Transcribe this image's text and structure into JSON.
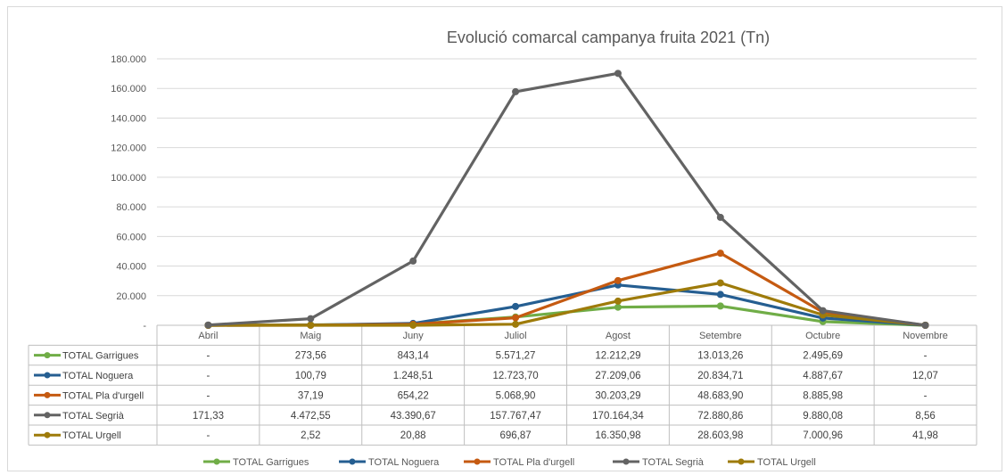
{
  "chart_data": {
    "type": "line",
    "title": "Evolució comarcal campanya fruita 2021 (Tn)",
    "categories": [
      "Abril",
      "Maig",
      "Juny",
      "Juliol",
      "Agost",
      "Setembre",
      "Octubre",
      "Novembre"
    ],
    "ylim": [
      0,
      180000
    ],
    "yticks": [
      0,
      20000,
      40000,
      60000,
      80000,
      100000,
      120000,
      140000,
      160000,
      180000
    ],
    "ytick_labels": [
      "-",
      "20.000",
      "40.000",
      "60.000",
      "80.000",
      "100.000",
      "120.000",
      "140.000",
      "160.000",
      "180.000"
    ],
    "grid": true,
    "legend_position": "bottom",
    "data_table": true,
    "series": [
      {
        "name": "TOTAL Garrigues",
        "color": "#70ad47",
        "values": [
          0,
          273.56,
          843.14,
          5571.27,
          12212.29,
          13013.26,
          2495.69,
          0
        ],
        "labels": [
          "-",
          "273,56",
          "843,14",
          "5.571,27",
          "12.212,29",
          "13.013,26",
          "2.495,69",
          "-"
        ]
      },
      {
        "name": "TOTAL Noguera",
        "color": "#255e91",
        "values": [
          0,
          100.79,
          1248.51,
          12723.7,
          27209.06,
          20834.71,
          4887.67,
          12.07
        ],
        "labels": [
          "-",
          "100,79",
          "1.248,51",
          "12.723,70",
          "27.209,06",
          "20.834,71",
          "4.887,67",
          "12,07"
        ]
      },
      {
        "name": "TOTAL Pla d'urgell",
        "color": "#c55a11",
        "values": [
          0,
          37.19,
          654.22,
          5068.9,
          30203.29,
          48683.9,
          8885.98,
          0
        ],
        "labels": [
          "-",
          "37,19",
          "654,22",
          "5.068,90",
          "30.203,29",
          "48.683,90",
          "8.885,98",
          "-"
        ]
      },
      {
        "name": "TOTAL Segrià",
        "color": "#636363",
        "values": [
          171.33,
          4472.55,
          43390.67,
          157767.47,
          170164.34,
          72880.86,
          9880.08,
          8.56
        ],
        "labels": [
          "171,33",
          "4.472,55",
          "43.390,67",
          "157.767,47",
          "170.164,34",
          "72.880,86",
          "9.880,08",
          "8,56"
        ]
      },
      {
        "name": "TOTAL Urgell",
        "color": "#9e7b0a",
        "values": [
          0,
          2.52,
          20.88,
          696.87,
          16350.98,
          28603.98,
          7000.96,
          41.98
        ],
        "labels": [
          "-",
          "2,52",
          "20,88",
          "696,87",
          "16.350,98",
          "28.603,98",
          "7.000,96",
          "41,98"
        ]
      }
    ]
  }
}
